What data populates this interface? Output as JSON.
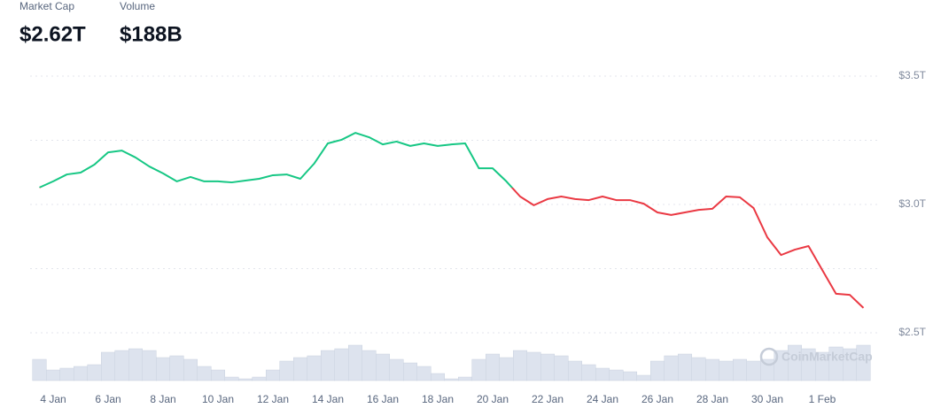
{
  "chart_data": {
    "type": "line",
    "watermark": "CoinMarketCap",
    "categories": [
      null,
      "4 Jan",
      null,
      null,
      null,
      "6 Jan",
      null,
      null,
      null,
      "8 Jan",
      null,
      null,
      null,
      "10 Jan",
      null,
      null,
      null,
      "12 Jan",
      null,
      null,
      null,
      "14 Jan",
      null,
      null,
      null,
      "16 Jan",
      null,
      null,
      null,
      "18 Jan",
      null,
      null,
      null,
      "20 Jan",
      null,
      null,
      null,
      "22 Jan",
      null,
      null,
      null,
      "24 Jan",
      null,
      null,
      null,
      "26 Jan",
      null,
      null,
      null,
      "28 Jan",
      null,
      null,
      null,
      "30 Jan",
      null,
      null,
      null,
      "1 Feb",
      null,
      null,
      null
    ],
    "series": [
      {
        "name": "Market Cap",
        "current": "$2.62T",
        "color_above": "#16c784",
        "color_below": "#ea3943",
        "values": [
          3.066,
          3.09,
          3.117,
          3.124,
          3.155,
          3.203,
          3.21,
          3.183,
          3.148,
          3.121,
          3.09,
          3.107,
          3.09,
          3.09,
          3.086,
          3.093,
          3.1,
          3.114,
          3.117,
          3.1,
          3.159,
          3.238,
          3.252,
          3.279,
          3.262,
          3.234,
          3.245,
          3.228,
          3.238,
          3.228,
          3.234,
          3.238,
          3.141,
          3.141,
          3.09,
          3.031,
          2.997,
          3.021,
          3.031,
          3.021,
          3.017,
          3.031,
          3.017,
          3.017,
          3.003,
          2.969,
          2.959,
          2.969,
          2.979,
          2.983,
          3.031,
          3.028,
          2.986,
          2.872,
          2.803,
          2.824,
          2.838,
          2.745,
          2.652,
          2.648,
          2.597
        ]
      },
      {
        "name": "Volume",
        "current": "$188B",
        "axis": "y2",
        "color": "#dde3ee",
        "values": [
          120,
          60,
          70,
          80,
          90,
          160,
          170,
          180,
          170,
          130,
          140,
          120,
          80,
          60,
          20,
          10,
          20,
          60,
          110,
          130,
          140,
          170,
          180,
          200,
          170,
          150,
          120,
          100,
          80,
          40,
          10,
          20,
          120,
          150,
          130,
          170,
          160,
          150,
          140,
          110,
          90,
          70,
          60,
          50,
          30,
          110,
          140,
          150,
          130,
          120,
          110,
          120,
          110,
          120,
          170,
          200,
          180,
          160,
          190,
          180,
          200
        ]
      }
    ],
    "ylim": [
      2.45,
      3.6
    ],
    "yticks": [
      {
        "value": 2.5,
        "label": "$2.5T"
      },
      {
        "value": 3.0,
        "label": "$3.0T"
      },
      {
        "value": 3.5,
        "label": "$3.5T"
      }
    ],
    "minor_yticks": [
      2.75,
      3.25
    ],
    "y2lim": [
      0,
      300
    ],
    "grid": true
  }
}
